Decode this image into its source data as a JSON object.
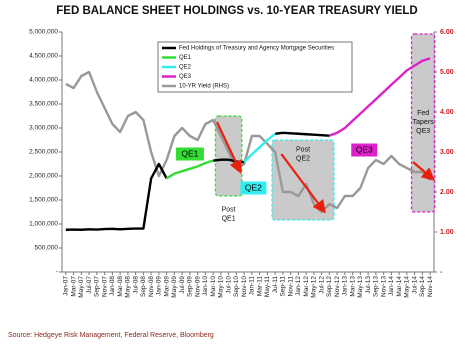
{
  "chart_data": {
    "type": "line",
    "title": "FED BALANCE SHEET HOLDINGS vs. 10-YEAR TREASURY YIELD",
    "source": "Source: Hedgeye Risk Management, Federal Reserve, Bloomberg",
    "categories": [
      "Jan-07",
      "Mar-07",
      "May-07",
      "Jul-07",
      "Sep-07",
      "Nov-07",
      "Jan-08",
      "Mar-08",
      "May-08",
      "Jul-08",
      "Sep-08",
      "Nov-08",
      "Jan-09",
      "Mar-09",
      "May-09",
      "Jul-09",
      "Sep-09",
      "Nov-09",
      "Jan-10",
      "Mar-10",
      "May-10",
      "Jul-10",
      "Sep-10",
      "Nov-10",
      "Jan-11",
      "Mar-11",
      "May-11",
      "Jul-11",
      "Sep-11",
      "Nov-11",
      "Jan-12",
      "Mar-12",
      "May-12",
      "Jul-12",
      "Sep-12",
      "Nov-12",
      "Jan-13",
      "Mar-13",
      "May-13",
      "Jul-13",
      "Sep-13",
      "Nov-13",
      "Jan-14",
      "Mar-14",
      "May-14",
      "Jul-14",
      "Sep-14",
      "Nov-14"
    ],
    "series": [
      {
        "name": "Fed Holdings of Treasury and Agency Mortgage Securities",
        "color": "#000000",
        "values": [
          880000,
          885000,
          880000,
          890000,
          885000,
          895000,
          900000,
          890000,
          900000,
          905000,
          905000,
          1950000,
          2250000,
          1950000,
          null,
          null,
          null,
          null,
          null,
          2320000,
          2340000,
          2340000,
          2300000,
          2290000,
          null,
          null,
          null,
          2880000,
          2900000,
          2890000,
          2880000,
          2870000,
          2860000,
          2850000,
          2840000,
          null,
          null,
          null,
          null,
          null,
          null,
          null,
          null,
          null,
          null,
          null,
          null,
          null
        ]
      },
      {
        "name": "QE1",
        "color": "#33dd33",
        "values": [
          null,
          null,
          null,
          null,
          null,
          null,
          null,
          null,
          null,
          null,
          null,
          null,
          null,
          1950000,
          2050000,
          2100000,
          2150000,
          2200000,
          2270000,
          2320000,
          null,
          null,
          null,
          null,
          null,
          null,
          null,
          null,
          null,
          null,
          null,
          null,
          null,
          null,
          null,
          null,
          null,
          null,
          null,
          null,
          null,
          null,
          null,
          null,
          null,
          null,
          null,
          null
        ]
      },
      {
        "name": "QE2",
        "color": "#33eeee",
        "values": [
          null,
          null,
          null,
          null,
          null,
          null,
          null,
          null,
          null,
          null,
          null,
          null,
          null,
          null,
          null,
          null,
          null,
          null,
          null,
          null,
          null,
          null,
          null,
          2290000,
          2450000,
          2600000,
          2750000,
          2880000,
          null,
          null,
          null,
          null,
          null,
          null,
          null,
          null,
          null,
          null,
          null,
          null,
          null,
          null,
          null,
          null,
          null,
          null,
          null,
          null
        ]
      },
      {
        "name": "QE3",
        "color": "#dd22cc",
        "values": [
          null,
          null,
          null,
          null,
          null,
          null,
          null,
          null,
          null,
          null,
          null,
          null,
          null,
          null,
          null,
          null,
          null,
          null,
          null,
          null,
          null,
          null,
          null,
          null,
          null,
          null,
          null,
          null,
          null,
          null,
          null,
          null,
          null,
          null,
          2840000,
          2900000,
          3000000,
          3150000,
          3300000,
          3450000,
          3600000,
          3750000,
          3900000,
          4050000,
          4200000,
          4300000,
          4400000,
          4450000
        ]
      },
      {
        "name": "10-YR Yield (RHS)",
        "color": "#999999",
        "axis": "y2",
        "values": [
          4.7,
          4.6,
          4.9,
          5.0,
          4.5,
          4.1,
          3.7,
          3.5,
          3.9,
          4.0,
          3.8,
          3.0,
          2.4,
          2.8,
          3.4,
          3.6,
          3.4,
          3.3,
          3.7,
          3.8,
          3.4,
          3.0,
          2.6,
          2.7,
          3.4,
          3.4,
          3.2,
          3.0,
          2.0,
          2.0,
          1.9,
          2.2,
          1.7,
          1.5,
          1.7,
          1.6,
          1.9,
          1.9,
          2.1,
          2.6,
          2.8,
          2.7,
          2.9,
          2.7,
          2.6,
          2.5,
          2.5,
          2.3
        ]
      }
    ],
    "ylim": [
      0,
      5000000
    ],
    "yticks": [
      {
        "value": 0,
        "label": "-"
      },
      {
        "value": 500000,
        "label": "500,000"
      },
      {
        "value": 1000000,
        "label": "1,000,000"
      },
      {
        "value": 1500000,
        "label": "1,500,000"
      },
      {
        "value": 2000000,
        "label": "2,000,000"
      },
      {
        "value": 2500000,
        "label": "2,500,000"
      },
      {
        "value": 3000000,
        "label": "3,000,000"
      },
      {
        "value": 3500000,
        "label": "3,500,000"
      },
      {
        "value": 4000000,
        "label": "4,000,000"
      },
      {
        "value": 4500000,
        "label": "4,500,000"
      },
      {
        "value": 5000000,
        "label": "5,000,000"
      }
    ],
    "y2lim": [
      0,
      6
    ],
    "y2ticks": [
      {
        "value": 0,
        "label": "-"
      },
      {
        "value": 1,
        "label": "1.00"
      },
      {
        "value": 2,
        "label": "2.00"
      },
      {
        "value": 3,
        "label": "3.00"
      },
      {
        "value": 4,
        "label": "4.00"
      },
      {
        "value": 5,
        "label": "5.00"
      },
      {
        "value": 6,
        "label": "6.00"
      }
    ],
    "annotations": [
      [
        "QE1"
      ],
      [
        "QE2"
      ],
      [
        "QE3"
      ],
      [
        "Post",
        "QE1"
      ],
      [
        "Post",
        "QE2"
      ],
      [
        "Fed",
        "Tapers",
        "QE3"
      ]
    ]
  }
}
